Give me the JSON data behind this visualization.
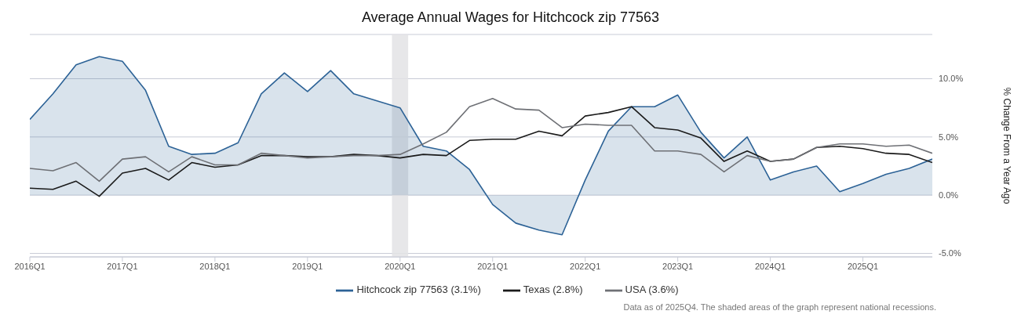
{
  "chart_data": {
    "type": "line",
    "title": "Average Annual Wages for Hitchcock zip 77563",
    "y2label": "% Change From a Year Ago",
    "categories": [
      "2016Q1",
      null,
      null,
      null,
      "2017Q1",
      null,
      null,
      null,
      "2018Q1",
      null,
      null,
      null,
      "2019Q1",
      null,
      null,
      null,
      "2020Q1",
      null,
      null,
      null,
      "2021Q1",
      null,
      null,
      null,
      "2022Q1",
      null,
      null,
      null,
      "2023Q1",
      null,
      null,
      null,
      "2024Q1",
      null,
      null,
      null,
      "2025Q1",
      null,
      null,
      null
    ],
    "y2lim": [
      -5.3,
      13.8
    ],
    "y2ticks": [
      {
        "value": -5,
        "label": "-5.0%"
      },
      {
        "value": 0,
        "label": "0.0%"
      },
      {
        "value": 5,
        "label": "5.0%"
      },
      {
        "value": 10,
        "label": "10.0%"
      }
    ],
    "grid": "y",
    "legend": "bottom",
    "marker": "none",
    "series": [
      {
        "name": "Hitchcock zip 77563 (3.1%)",
        "type": "area",
        "axis": "y2",
        "color": "#2c6296",
        "values": [
          6.5,
          8.7,
          11.2,
          11.9,
          11.5,
          9.0,
          4.2,
          3.5,
          3.6,
          4.5,
          8.7,
          10.5,
          8.9,
          10.7,
          8.7,
          8.1,
          7.5,
          4.2,
          3.8,
          2.2,
          -0.8,
          -2.4,
          -3.0,
          -3.4,
          1.3,
          5.5,
          7.6,
          7.6,
          8.6,
          5.4,
          3.2,
          5.0,
          1.3,
          2.0,
          2.5,
          0.3,
          1.0,
          1.8,
          2.3,
          3.1
        ]
      },
      {
        "name": "Texas (2.8%)",
        "axis": "y2",
        "color": "#1a1a1a",
        "values": [
          0.6,
          0.5,
          1.2,
          -0.1,
          1.9,
          2.3,
          1.3,
          2.8,
          2.4,
          2.6,
          3.4,
          3.4,
          3.3,
          3.3,
          3.5,
          3.4,
          3.2,
          3.5,
          3.4,
          4.7,
          4.8,
          4.8,
          5.5,
          5.1,
          6.8,
          7.1,
          7.6,
          5.8,
          5.6,
          4.9,
          2.9,
          3.8,
          2.9,
          3.1,
          4.1,
          4.2,
          4.0,
          3.6,
          3.5,
          2.8
        ]
      },
      {
        "name": "USA (3.6%)",
        "axis": "y2",
        "color": "#6e7075",
        "values": [
          2.3,
          2.1,
          2.8,
          1.2,
          3.1,
          3.3,
          2.0,
          3.3,
          2.6,
          2.6,
          3.6,
          3.4,
          3.2,
          3.3,
          3.4,
          3.4,
          3.5,
          4.4,
          5.4,
          7.6,
          8.3,
          7.4,
          7.3,
          5.8,
          6.1,
          6.0,
          6.0,
          3.8,
          3.8,
          3.5,
          2.0,
          3.4,
          2.9,
          3.1,
          4.1,
          4.4,
          4.4,
          4.2,
          4.3,
          3.6
        ]
      }
    ],
    "bands": [
      {
        "axis": "x",
        "from": "2020Q1",
        "to": "2020Q1",
        "color": "#e3e3e5"
      }
    ],
    "annotations": [
      "Data as of 2025Q4. The shaded areas of the graph represent national recessions."
    ]
  }
}
